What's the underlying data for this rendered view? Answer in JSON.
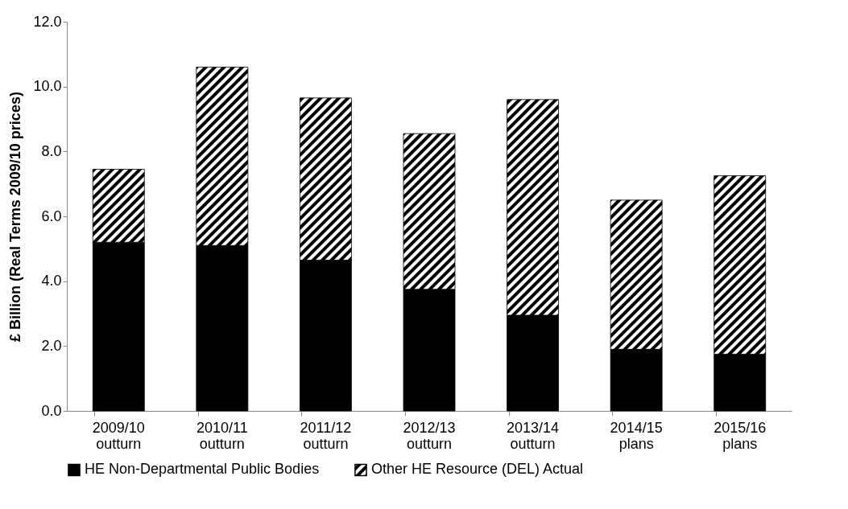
{
  "chart_data": {
    "type": "bar",
    "stacked": true,
    "ylabel": "£ Billion (Real Terms 2009/10 prices)",
    "categories": [
      "2009/10 outturn",
      "2010/11 outturn",
      "2011/12 outturn",
      "2012/13 outturn",
      "2013/14 outturn",
      "2014/15 plans",
      "2015/16 plans"
    ],
    "series": [
      {
        "name": "HE Non-Departmental Public Bodies",
        "color": "#000000",
        "values": [
          5.2,
          5.1,
          4.65,
          3.75,
          2.95,
          1.9,
          1.75
        ]
      },
      {
        "name": "Other HE Resource (DEL)  Actual",
        "color": "#000000",
        "values": [
          2.25,
          5.5,
          5.0,
          4.8,
          6.65,
          4.6,
          5.5
        ]
      }
    ],
    "ylim": [
      0,
      12
    ],
    "yticks": [
      {
        "value": 0,
        "label": "0.0"
      },
      {
        "value": 2,
        "label": "2.0"
      },
      {
        "value": 4,
        "label": "4.0"
      },
      {
        "value": 6,
        "label": "6.0"
      },
      {
        "value": 8,
        "label": "8.0"
      },
      {
        "value": 10,
        "label": "10.0"
      },
      {
        "value": 12,
        "label": "12.0"
      }
    ],
    "grid": false,
    "legend": "bottom"
  }
}
